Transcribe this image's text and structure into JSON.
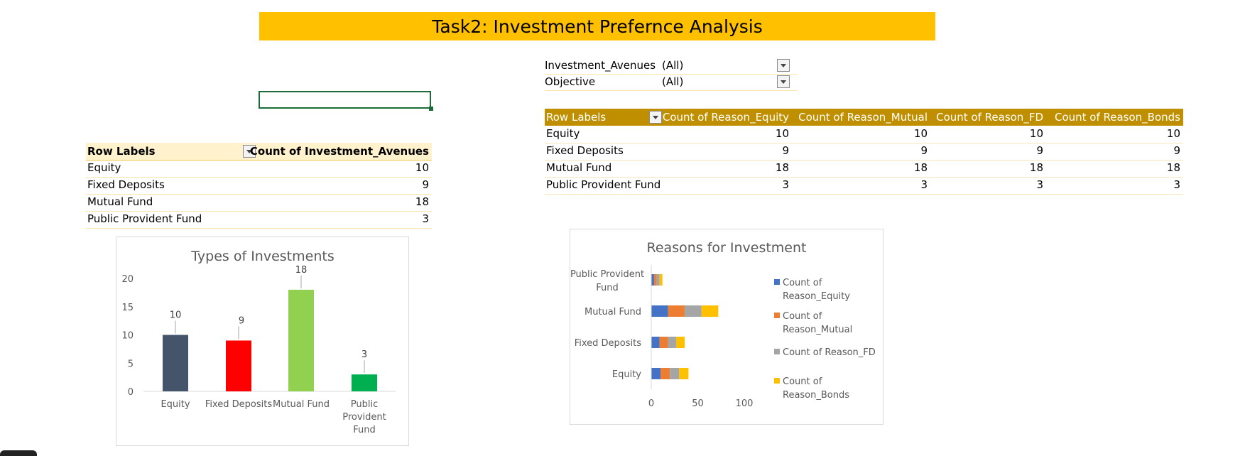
{
  "title": "Task2: Investment Prefernce Analysis",
  "filters": [
    {
      "label": "Investment_Avenues",
      "value": "(All)"
    },
    {
      "label": "Objective",
      "value": "(All)"
    }
  ],
  "left_pivot": {
    "headers": [
      "Row Labels",
      "Count of Investment_Avenues"
    ],
    "rows": [
      {
        "label": "Equity",
        "value": "10"
      },
      {
        "label": "Fixed Deposits",
        "value": "9"
      },
      {
        "label": "Mutual Fund",
        "value": "18"
      },
      {
        "label": "Public Provident Fund",
        "value": "3"
      }
    ]
  },
  "right_pivot": {
    "headers": [
      "Row Labels",
      "Count of Reason_Equity",
      "Count of Reason_Mutual",
      "Count of Reason_FD",
      "Count of Reason_Bonds"
    ],
    "rows": [
      {
        "label": "Equity",
        "values": [
          "10",
          "10",
          "10",
          "10"
        ]
      },
      {
        "label": "Fixed Deposits",
        "values": [
          "9",
          "9",
          "9",
          "9"
        ]
      },
      {
        "label": "Mutual Fund",
        "values": [
          "18",
          "18",
          "18",
          "18"
        ]
      },
      {
        "label": "Public Provident Fund",
        "values": [
          "3",
          "3",
          "3",
          "3"
        ]
      }
    ]
  },
  "colors": {
    "title_band": "#FFC000",
    "equity_bar": "#44546A",
    "fd_bar": "#FF0000",
    "mf_bar": "#92D050",
    "ppf_bar": "#00B050",
    "s_equity": "#4472C4",
    "s_mutual": "#ED7D31",
    "s_fd": "#A5A5A5",
    "s_bonds": "#FFC000"
  },
  "chart_data": [
    {
      "type": "bar",
      "title": "Types of Investments",
      "categories": [
        "Equity",
        "Fixed Deposits",
        "Mutual Fund",
        "Public Provident Fund"
      ],
      "values": [
        10,
        9,
        18,
        3
      ],
      "ylim": [
        0,
        20
      ],
      "yticks": [
        "0",
        "5",
        "10",
        "15",
        "20"
      ],
      "grid": false
    },
    {
      "type": "bar",
      "orientation": "horizontal",
      "stacked": true,
      "title": "Reasons for Investment",
      "categories": [
        "Equity",
        "Fixed Deposits",
        "Mutual Fund",
        "Public Provident Fund"
      ],
      "series": [
        {
          "name": "Count of Reason_Equity",
          "legend_lines": [
            "Count of",
            "Reason_Equity"
          ],
          "values": [
            10,
            9,
            18,
            3
          ]
        },
        {
          "name": "Count of Reason_Mutual",
          "legend_lines": [
            "Count of",
            "Reason_Mutual"
          ],
          "values": [
            10,
            9,
            18,
            3
          ]
        },
        {
          "name": "Count of Reason_FD",
          "legend_lines": [
            "Count of Reason_FD"
          ],
          "values": [
            10,
            9,
            18,
            3
          ]
        },
        {
          "name": "Count of Reason_Bonds",
          "legend_lines": [
            "Count of",
            "Reason_Bonds"
          ],
          "values": [
            10,
            9,
            18,
            3
          ]
        }
      ],
      "xlim": [
        0,
        100
      ],
      "xticks": [
        "0",
        "50",
        "100"
      ],
      "legend": "right",
      "grid": false
    }
  ]
}
